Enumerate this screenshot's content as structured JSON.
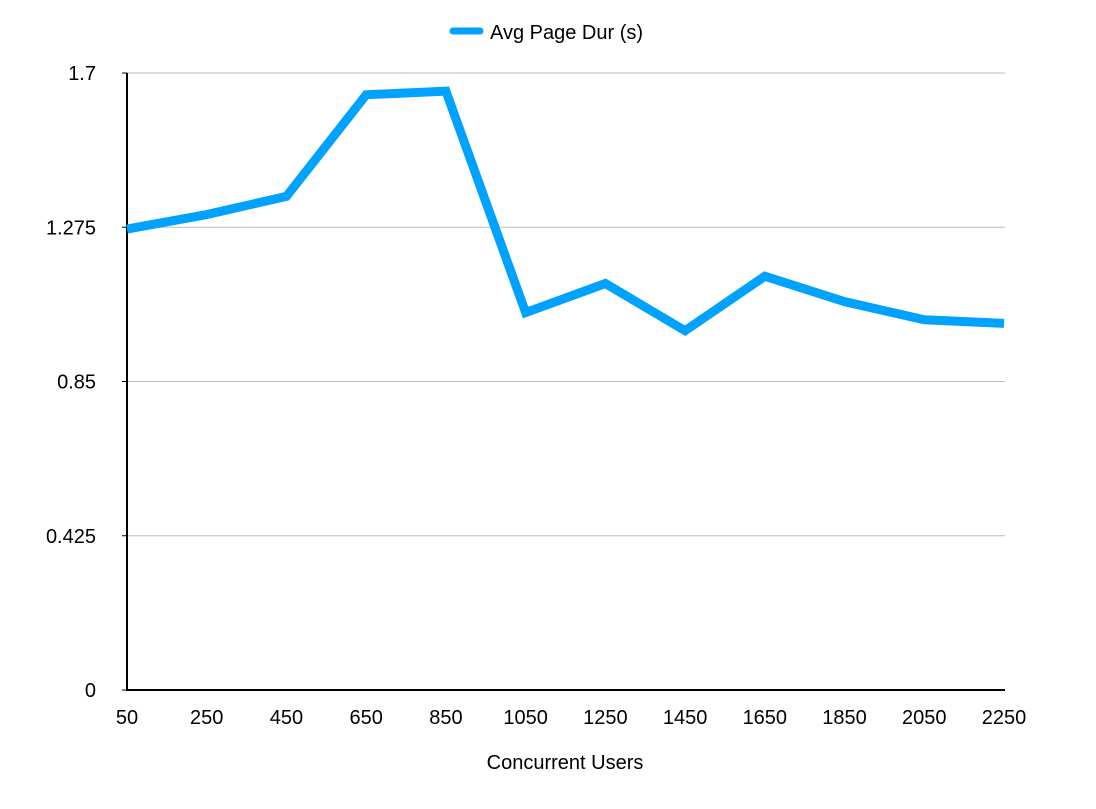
{
  "chart_data": {
    "type": "line",
    "title": "",
    "xlabel": "Concurrent Users",
    "ylabel": "",
    "categories": [
      "50",
      "250",
      "450",
      "650",
      "850",
      "1050",
      "1250",
      "1450",
      "1650",
      "1850",
      "2050",
      "2250"
    ],
    "series": [
      {
        "name": "Avg Page Dur (s)",
        "color": "#00A2FF",
        "values": [
          1.27,
          1.31,
          1.36,
          1.64,
          1.65,
          1.04,
          1.12,
          0.99,
          1.14,
          1.07,
          1.02,
          1.01
        ]
      }
    ],
    "ylim": [
      0,
      1.7
    ],
    "yticks": [
      "0",
      "0.425",
      "0.85",
      "1.275",
      "1.7"
    ],
    "grid": true,
    "legend": "top-center"
  }
}
